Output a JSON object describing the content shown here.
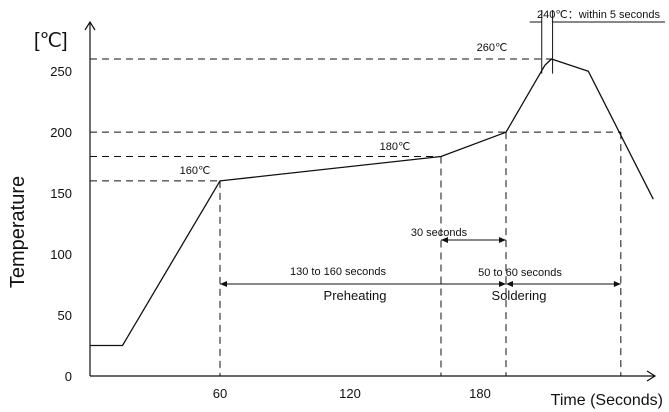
{
  "chart_data": {
    "type": "line",
    "title": "",
    "xlabel": "Time (Seconds)",
    "ylabel": "Temperature",
    "yunit": "[℃]",
    "xlim": [
      0,
      240
    ],
    "ylim": [
      0,
      275
    ],
    "x_ticks": [
      60,
      120,
      180
    ],
    "y_ticks": [
      0,
      50,
      100,
      150,
      200,
      250
    ],
    "grid": false,
    "legend": "none",
    "series": [
      {
        "x": [
          0,
          15,
          60,
          162,
          192,
          210,
          213,
          230,
          260
        ],
        "y": [
          25,
          25,
          160,
          180,
          200,
          255,
          260,
          250,
          145
        ]
      }
    ],
    "reference_lines": {
      "temperatures": [
        160,
        180,
        200,
        260
      ],
      "times": [
        60,
        162,
        192,
        245
      ]
    },
    "annotations": {
      "temp_160": "160℃",
      "temp_180": "180℃",
      "temp_260": "260℃",
      "peak_window": "240℃：within 5 seconds",
      "preheat_duration": "130 to 160 seconds",
      "preheat_phase": "Preheating",
      "hold_duration": "30 seconds",
      "solder_duration": "50 to 60 seconds",
      "solder_phase": "Soldering"
    },
    "colors": {
      "line": "#111111",
      "background": "#ffffff"
    }
  }
}
